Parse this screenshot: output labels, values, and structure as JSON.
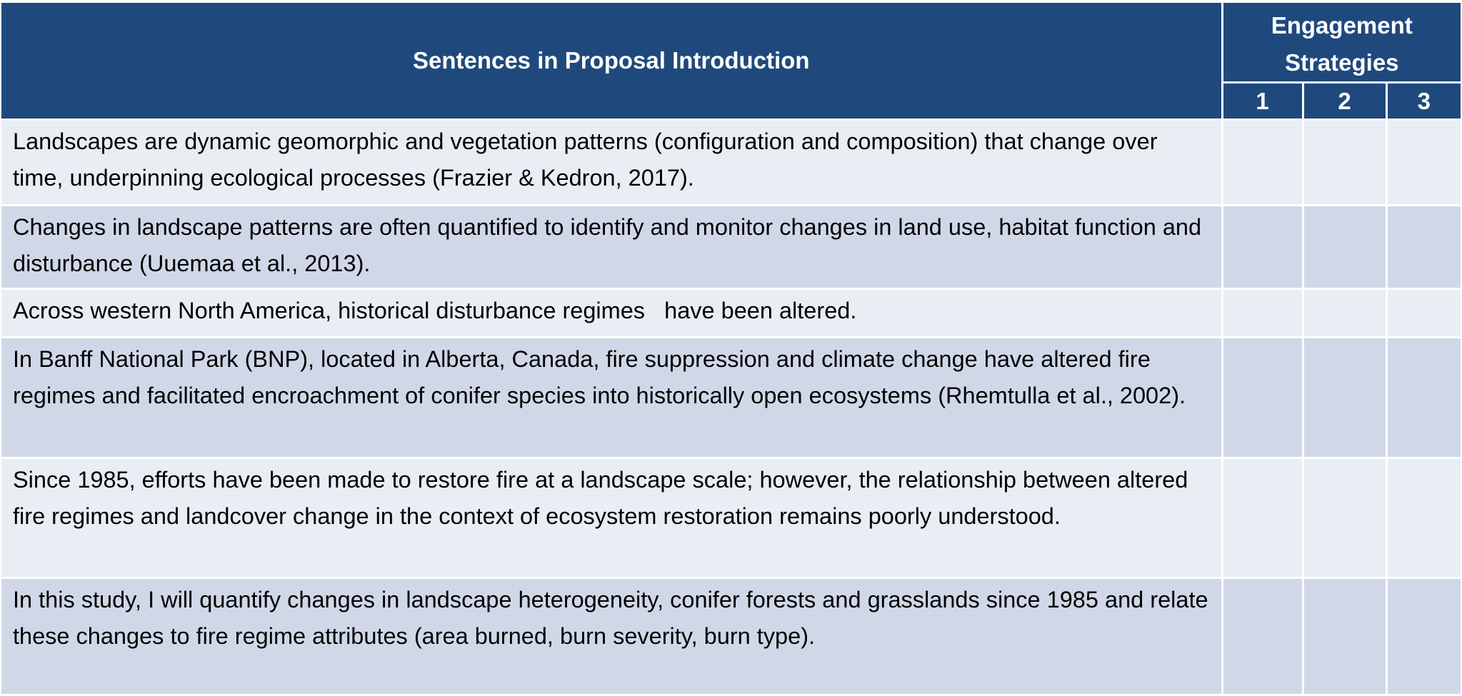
{
  "table": {
    "header": {
      "sentences": "Sentences in Proposal Introduction",
      "strategies": "Engagement Strategies",
      "columns": [
        "1",
        "2",
        "3"
      ]
    },
    "rows": [
      {
        "sentence": "Landscapes are dynamic geomorphic and vegetation patterns (configuration and composition) that change over time, underpinning ecological processes (Frazier & Kedron, 2017)."
      },
      {
        "sentence": "Changes in landscape patterns are often quantified to identify and monitor changes in land use, habitat function and disturbance (Uuemaa et al., 2013)."
      },
      {
        "sentence": "Across western North America, historical disturbance regimes   have been altered."
      },
      {
        "sentence": "In Banff National Park (BNP), located in Alberta, Canada, fire suppression and climate change have altered fire regimes and facilitated encroachment of conifer species into historically open ecosystems (Rhemtulla et al., 2002)."
      },
      {
        "sentence": "Since 1985, efforts have been made to restore fire at a landscape scale; however, the relationship between altered fire regimes and landcover change in the context of ecosystem restoration remains poorly understood."
      },
      {
        "sentence": "In this study, I will quantify changes in landscape heterogeneity, conifer forests and grasslands since 1985 and relate these changes to fire regime attributes (area burned, burn severity, burn type)."
      }
    ]
  }
}
